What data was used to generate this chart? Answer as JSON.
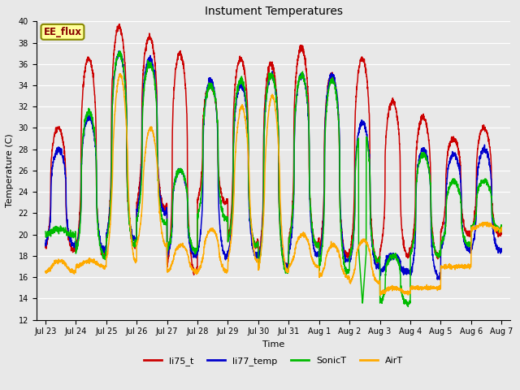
{
  "title": "Instument Temperatures",
  "ylabel": "Temperature (C)",
  "xlabel": "Time",
  "ylim": [
    12,
    40
  ],
  "yticks": [
    12,
    14,
    16,
    18,
    20,
    22,
    24,
    26,
    28,
    30,
    32,
    34,
    36,
    38,
    40
  ],
  "xtick_labels": [
    "Jul 23",
    "Jul 24",
    "Jul 25",
    "Jul 26",
    "Jul 27",
    "Jul 28",
    "Jul 29",
    "Jul 30",
    "Jul 31",
    "Aug 1",
    "Aug 2",
    "Aug 3",
    "Aug 4",
    "Aug 5",
    "Aug 6",
    "Aug 7"
  ],
  "colors": {
    "li75_t": "#cc0000",
    "li77_temp": "#0000cc",
    "SonicT": "#00bb00",
    "AirT": "#ffaa00"
  },
  "line_width": 1.1,
  "plot_bg": "#e8e8e8",
  "fig_bg": "#e8e8e8",
  "annotation_text": "EE_flux",
  "annotation_bg": "#ffff99",
  "annotation_border": "#888800",
  "peaks_li75": [
    30.0,
    36.5,
    39.5,
    38.5,
    37.0,
    34.0,
    36.5,
    36.0,
    37.5,
    35.0,
    36.5,
    32.5,
    31.0,
    29.0,
    30.0
  ],
  "troughs_li75": [
    18.5,
    18.0,
    19.0,
    22.5,
    16.5,
    23.0,
    19.0,
    17.0,
    19.0,
    18.0,
    17.5,
    18.0,
    18.0,
    20.0,
    20.0
  ],
  "peaks_li77": [
    28.0,
    31.0,
    37.0,
    36.5,
    26.0,
    34.5,
    34.0,
    35.0,
    35.0,
    35.0,
    30.5,
    18.0,
    28.0,
    27.5,
    28.0
  ],
  "troughs_li77": [
    19.0,
    18.5,
    19.5,
    22.0,
    18.0,
    18.0,
    18.0,
    17.0,
    18.0,
    17.5,
    17.0,
    16.5,
    16.0,
    18.5,
    18.5
  ],
  "peaks_sonic": [
    20.5,
    31.5,
    37.0,
    36.0,
    26.0,
    34.0,
    34.5,
    35.0,
    35.0,
    34.5,
    30.0,
    18.0,
    27.5,
    25.0,
    25.0
  ],
  "troughs_sonic": [
    20.0,
    18.0,
    19.0,
    21.0,
    18.5,
    21.5,
    19.0,
    16.5,
    19.0,
    16.5,
    17.5,
    13.5,
    18.0,
    19.0,
    20.5
  ],
  "peaks_air": [
    17.5,
    17.5,
    35.0,
    30.0,
    19.0,
    20.5,
    32.0,
    33.0,
    20.0,
    19.0,
    19.5,
    15.0,
    15.0,
    17.0,
    21.0
  ],
  "troughs_air": [
    16.5,
    17.0,
    17.5,
    19.0,
    16.5,
    16.5,
    17.5,
    16.5,
    17.0,
    16.0,
    15.5,
    14.5,
    15.0,
    17.0,
    20.5
  ]
}
